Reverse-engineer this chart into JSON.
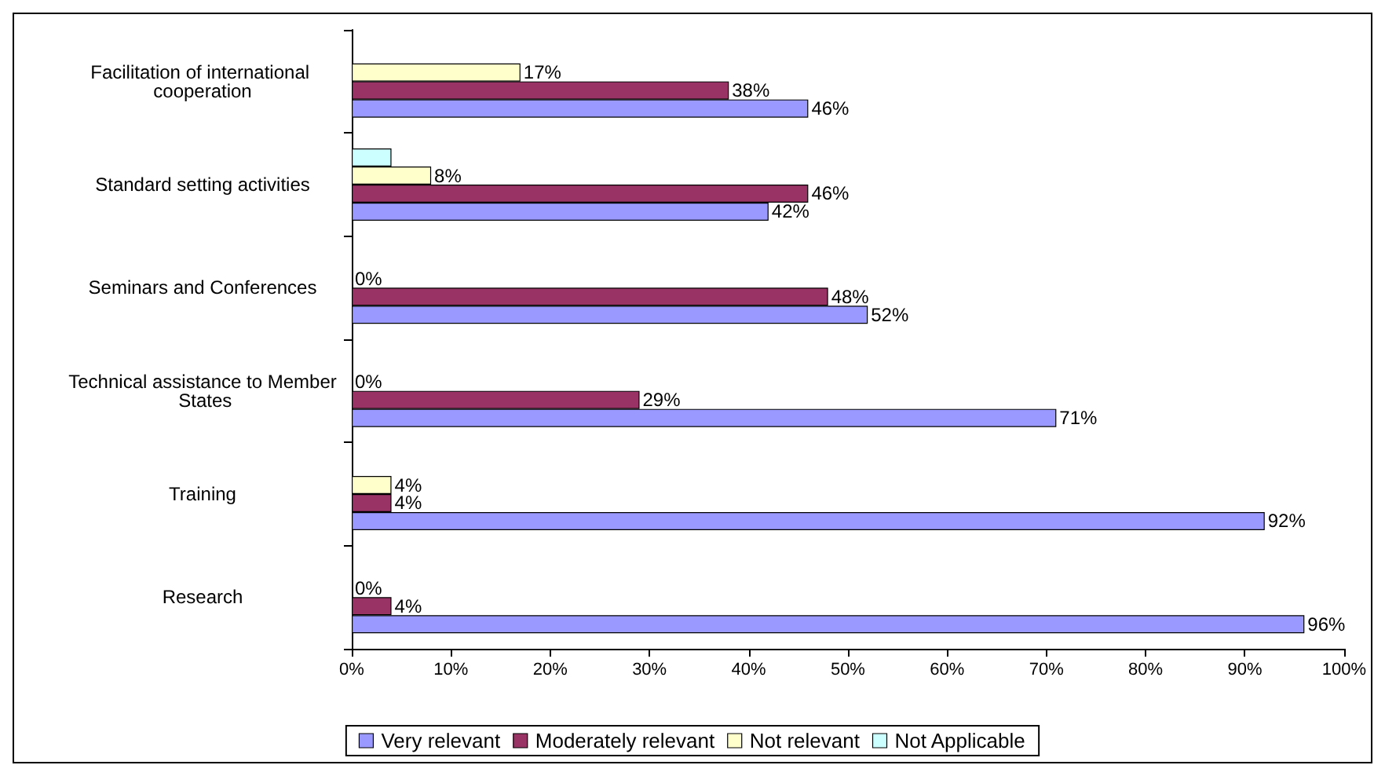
{
  "chart_data": {
    "type": "bar",
    "orientation": "horizontal",
    "categories": [
      "Facilitation of international cooperation",
      "Standard setting activities",
      "Seminars and Conferences",
      "Technical assistance to Member States",
      "Training",
      "Research"
    ],
    "series": [
      {
        "name": "Very relevant",
        "color": "#9999ff",
        "values": [
          46,
          42,
          52,
          71,
          92,
          96
        ],
        "value_labels": [
          "46%",
          "42%",
          "52%",
          "71%",
          "92%",
          "96%"
        ]
      },
      {
        "name": "Moderately relevant",
        "color": "#993366",
        "values": [
          38,
          46,
          48,
          29,
          4,
          4
        ],
        "value_labels": [
          "38%",
          "46%",
          "48%",
          "29%",
          "4%",
          "4%"
        ]
      },
      {
        "name": "Not relevant",
        "color": "#ffffcc",
        "values": [
          17,
          8,
          0,
          0,
          4,
          0
        ],
        "value_labels": [
          "17%",
          "8%",
          "0%",
          "0%",
          "4%",
          "0%"
        ]
      },
      {
        "name": "Not Applicable",
        "color": "#ccffff",
        "values": [
          null,
          4,
          null,
          null,
          null,
          null
        ],
        "value_labels": [
          null,
          null,
          null,
          null,
          null,
          null
        ]
      }
    ],
    "xlim": [
      0,
      100
    ],
    "xticks": [
      {
        "value": 0,
        "label": "0%"
      },
      {
        "value": 10,
        "label": "10%"
      },
      {
        "value": 20,
        "label": "20%"
      },
      {
        "value": 30,
        "label": "30%"
      },
      {
        "value": 40,
        "label": "40%"
      },
      {
        "value": 50,
        "label": "50%"
      },
      {
        "value": 60,
        "label": "60%"
      },
      {
        "value": 70,
        "label": "70%"
      },
      {
        "value": 80,
        "label": "80%"
      },
      {
        "value": 90,
        "label": "90%"
      },
      {
        "value": 100,
        "label": "100%"
      }
    ],
    "grid": false,
    "legend": "bottom"
  }
}
